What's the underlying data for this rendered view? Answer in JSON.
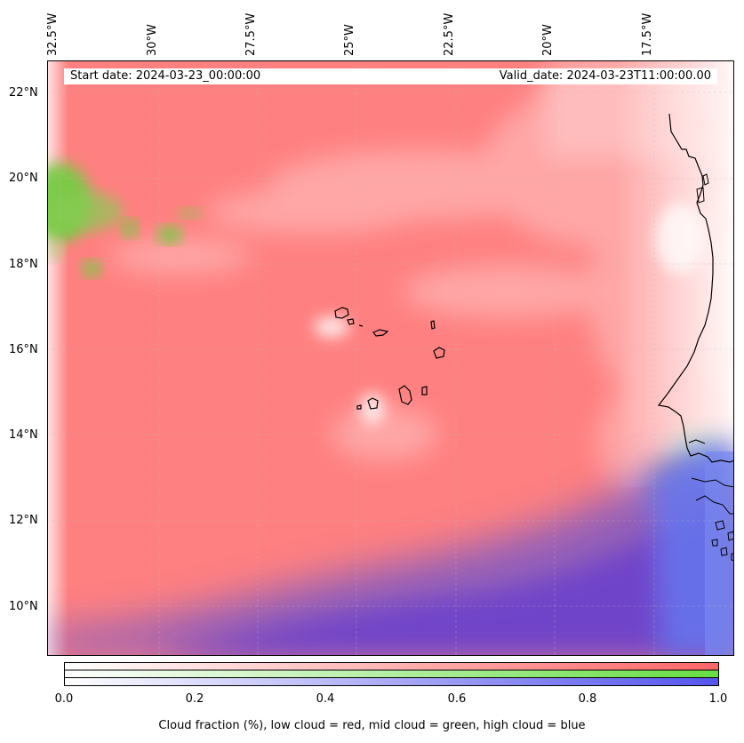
{
  "header": {
    "start_date": "Start date: 2024-03-23_00:00:00",
    "valid_date": "Valid_date: 2024-03-23T11:00:00.00"
  },
  "axes": {
    "lon_ticks": [
      "32.5°W",
      "30°W",
      "27.5°W",
      "25°W",
      "22.5°W",
      "20°W",
      "17.5°W"
    ],
    "lat_ticks": [
      "22°N",
      "20°N",
      "18°N",
      "16°N",
      "14°N",
      "12°N",
      "10°N"
    ]
  },
  "colorbar": {
    "ticks": [
      "0.0",
      "0.2",
      "0.4",
      "0.6",
      "0.8",
      "1.0"
    ],
    "caption": "Cloud fraction (%), low cloud = red, mid cloud = green, high cloud = blue",
    "colors": {
      "low": "#ff7777",
      "mid": "#77dd55",
      "high": "#6666ee"
    }
  },
  "map": {
    "coastline_color": "#000000",
    "gridlines": true,
    "base_color": "#ff8080"
  }
}
